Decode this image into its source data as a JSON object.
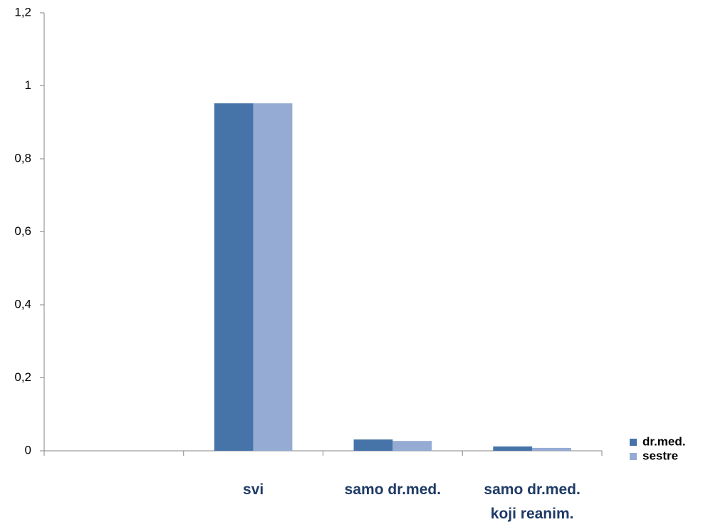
{
  "chart_data": {
    "type": "bar",
    "categories": [
      null,
      "svi",
      "samo dr.med.",
      "samo dr.med.\nkoji reanim."
    ],
    "series": [
      {
        "name": "dr.med.",
        "color": "#4774a8",
        "values": [
          null,
          0.952,
          0.031,
          0.012
        ]
      },
      {
        "name": "sestre",
        "color": "#95abd3",
        "values": [
          null,
          0.952,
          0.027,
          0.008
        ]
      }
    ],
    "ylim": [
      0,
      1.2
    ],
    "yticks": [
      0,
      {
        "value": 0.2,
        "label": "0,2"
      },
      {
        "value": 0.4,
        "label": "0,4"
      },
      {
        "value": 0.6,
        "label": "0,6"
      },
      {
        "value": 0.8,
        "label": "0,8"
      },
      1,
      {
        "value": 1.2,
        "label": "1,2"
      }
    ],
    "grid": false,
    "legend": "right"
  }
}
